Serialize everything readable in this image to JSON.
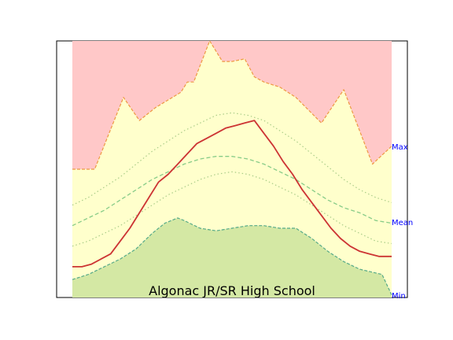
{
  "chart_data": {
    "type": "area",
    "title": "Algonac JR/SR High School",
    "right_labels": {
      "max": "Max",
      "mean": "Mean",
      "min": "Min"
    },
    "x": [
      0,
      0.05,
      0.1,
      0.15,
      0.2,
      0.25,
      0.3,
      0.35,
      0.4,
      0.45,
      0.5,
      0.55,
      0.6,
      0.65,
      0.7,
      0.75,
      0.8,
      0.85,
      0.9,
      0.95,
      1.0
    ],
    "ylim": [
      0,
      1
    ],
    "max_upper": [
      [
        0.0,
        0.5
      ],
      [
        0.07,
        0.5
      ],
      [
        0.16,
        0.78
      ],
      [
        0.21,
        0.69
      ],
      [
        0.26,
        0.74
      ],
      [
        0.34,
        0.8
      ],
      [
        0.36,
        0.84
      ],
      [
        0.38,
        0.84
      ],
      [
        0.43,
        1.0
      ],
      [
        0.47,
        0.92
      ],
      [
        0.5,
        0.92
      ],
      [
        0.54,
        0.93
      ],
      [
        0.57,
        0.86
      ],
      [
        0.6,
        0.84
      ],
      [
        0.65,
        0.82
      ],
      [
        0.7,
        0.78
      ],
      [
        0.78,
        0.68
      ],
      [
        0.85,
        0.81
      ],
      [
        0.94,
        0.52
      ],
      [
        1.0,
        0.59
      ]
    ],
    "min_lower": [
      [
        0.0,
        0.07
      ],
      [
        0.05,
        0.09
      ],
      [
        0.1,
        0.12
      ],
      [
        0.15,
        0.15
      ],
      [
        0.2,
        0.19
      ],
      [
        0.25,
        0.25
      ],
      [
        0.29,
        0.29
      ],
      [
        0.33,
        0.31
      ],
      [
        0.35,
        0.3
      ],
      [
        0.4,
        0.27
      ],
      [
        0.45,
        0.26
      ],
      [
        0.5,
        0.27
      ],
      [
        0.55,
        0.28
      ],
      [
        0.6,
        0.28
      ],
      [
        0.65,
        0.27
      ],
      [
        0.7,
        0.27
      ],
      [
        0.75,
        0.23
      ],
      [
        0.8,
        0.18
      ],
      [
        0.85,
        0.14
      ],
      [
        0.9,
        0.11
      ],
      [
        0.97,
        0.09
      ],
      [
        1.0,
        0.01
      ]
    ],
    "mean": [
      [
        0.0,
        0.28
      ],
      [
        0.05,
        0.31
      ],
      [
        0.1,
        0.34
      ],
      [
        0.15,
        0.38
      ],
      [
        0.2,
        0.42
      ],
      [
        0.25,
        0.46
      ],
      [
        0.3,
        0.49
      ],
      [
        0.35,
        0.52
      ],
      [
        0.4,
        0.54
      ],
      [
        0.45,
        0.55
      ],
      [
        0.5,
        0.55
      ],
      [
        0.55,
        0.54
      ],
      [
        0.6,
        0.52
      ],
      [
        0.65,
        0.49
      ],
      [
        0.7,
        0.46
      ],
      [
        0.75,
        0.42
      ],
      [
        0.8,
        0.38
      ],
      [
        0.85,
        0.35
      ],
      [
        0.9,
        0.33
      ],
      [
        0.95,
        0.3
      ],
      [
        1.0,
        0.29
      ]
    ],
    "upper_dotted": [
      [
        0.0,
        0.36
      ],
      [
        0.05,
        0.39
      ],
      [
        0.1,
        0.43
      ],
      [
        0.15,
        0.47
      ],
      [
        0.2,
        0.52
      ],
      [
        0.25,
        0.57
      ],
      [
        0.3,
        0.61
      ],
      [
        0.35,
        0.65
      ],
      [
        0.4,
        0.68
      ],
      [
        0.45,
        0.71
      ],
      [
        0.5,
        0.72
      ],
      [
        0.55,
        0.71
      ],
      [
        0.6,
        0.69
      ],
      [
        0.65,
        0.65
      ],
      [
        0.7,
        0.61
      ],
      [
        0.75,
        0.56
      ],
      [
        0.8,
        0.51
      ],
      [
        0.85,
        0.46
      ],
      [
        0.9,
        0.42
      ],
      [
        0.95,
        0.39
      ],
      [
        1.0,
        0.37
      ]
    ],
    "lower_dotted": [
      [
        0.0,
        0.2
      ],
      [
        0.05,
        0.22
      ],
      [
        0.1,
        0.25
      ],
      [
        0.15,
        0.28
      ],
      [
        0.2,
        0.32
      ],
      [
        0.25,
        0.36
      ],
      [
        0.3,
        0.4
      ],
      [
        0.35,
        0.43
      ],
      [
        0.4,
        0.46
      ],
      [
        0.45,
        0.48
      ],
      [
        0.5,
        0.49
      ],
      [
        0.55,
        0.48
      ],
      [
        0.6,
        0.46
      ],
      [
        0.65,
        0.43
      ],
      [
        0.7,
        0.4
      ],
      [
        0.75,
        0.36
      ],
      [
        0.8,
        0.32
      ],
      [
        0.85,
        0.28
      ],
      [
        0.9,
        0.25
      ],
      [
        0.95,
        0.22
      ],
      [
        1.0,
        0.21
      ]
    ],
    "current": [
      [
        0.0,
        0.12
      ],
      [
        0.03,
        0.12
      ],
      [
        0.06,
        0.13
      ],
      [
        0.09,
        0.15
      ],
      [
        0.12,
        0.17
      ],
      [
        0.15,
        0.22
      ],
      [
        0.18,
        0.27
      ],
      [
        0.21,
        0.33
      ],
      [
        0.24,
        0.39
      ],
      [
        0.27,
        0.45
      ],
      [
        0.3,
        0.48
      ],
      [
        0.33,
        0.52
      ],
      [
        0.36,
        0.56
      ],
      [
        0.39,
        0.6
      ],
      [
        0.42,
        0.62
      ],
      [
        0.45,
        0.64
      ],
      [
        0.48,
        0.66
      ],
      [
        0.51,
        0.67
      ],
      [
        0.54,
        0.68
      ],
      [
        0.57,
        0.69
      ],
      [
        0.6,
        0.64
      ],
      [
        0.63,
        0.59
      ],
      [
        0.66,
        0.53
      ],
      [
        0.69,
        0.48
      ],
      [
        0.72,
        0.42
      ],
      [
        0.75,
        0.37
      ],
      [
        0.78,
        0.32
      ],
      [
        0.81,
        0.27
      ],
      [
        0.84,
        0.23
      ],
      [
        0.87,
        0.2
      ],
      [
        0.9,
        0.18
      ],
      [
        0.93,
        0.17
      ],
      [
        0.96,
        0.16
      ],
      [
        1.0,
        0.16
      ]
    ],
    "colors": {
      "max_band": "#ffc8c8",
      "mid_band": "#ffffcc",
      "min_band": "#d4e8a4",
      "max_line": "#ee9944",
      "min_line": "#55aa88",
      "mean_line": "#88cc88",
      "dotted_line": "#aacc88",
      "current_line": "#cc3333",
      "label": "#0000ff"
    }
  }
}
